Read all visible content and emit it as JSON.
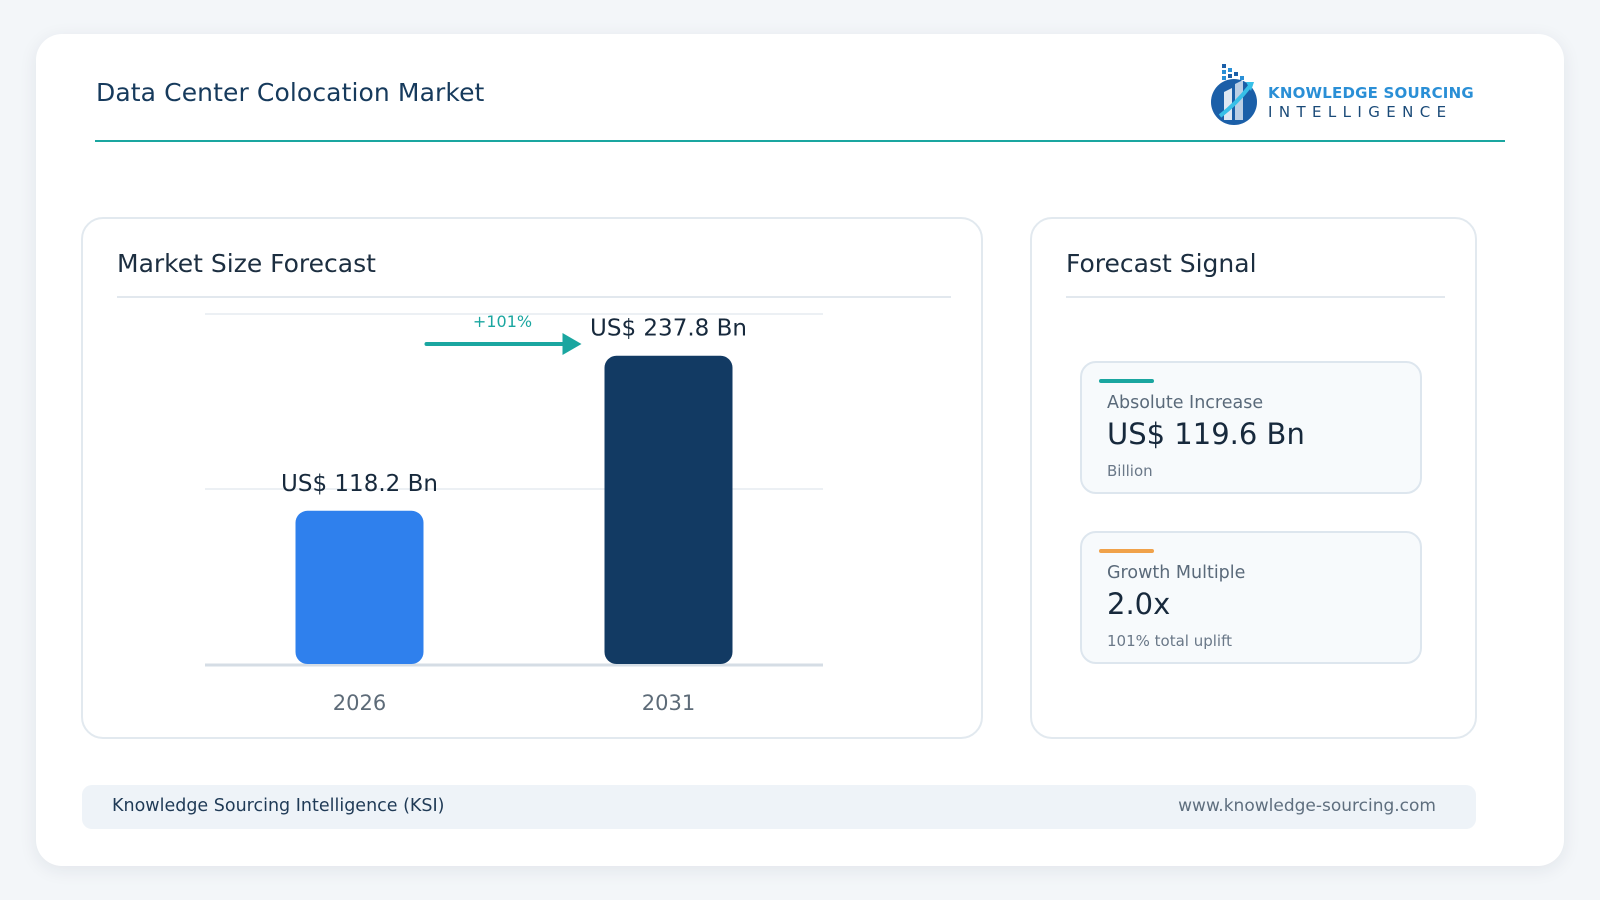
{
  "header": {
    "title": "Data Center Colocation Market",
    "logo_line1": "KNOWLEDGE SOURCING",
    "logo_line2": "INTELLIGENCE"
  },
  "market_panel": {
    "title": "Market Size Forecast",
    "growth_label": "+101%"
  },
  "signal_panel": {
    "title": "Forecast Signal",
    "cards": [
      {
        "label": "Absolute Increase",
        "value": "US$ 119.6 Bn",
        "sub": "Billion",
        "accent": "#1aa6a0"
      },
      {
        "label": "Growth Multiple",
        "value": "2.0x",
        "sub": "101% total uplift",
        "accent": "#f0a24a"
      }
    ]
  },
  "footer": {
    "left": "Knowledge Sourcing Intelligence (KSI)",
    "right": "www.knowledge-sourcing.com"
  },
  "chart_data": {
    "type": "bar",
    "categories": [
      "2026",
      "2031"
    ],
    "values": [
      118.2,
      237.8
    ],
    "value_labels": [
      "US$ 118.2 Bn",
      "US$ 237.8 Bn"
    ],
    "colors": [
      "#2f80ed",
      "#123a63"
    ],
    "ylim": [
      0,
      270
    ],
    "gridlines": true,
    "annotation": "+101%"
  }
}
